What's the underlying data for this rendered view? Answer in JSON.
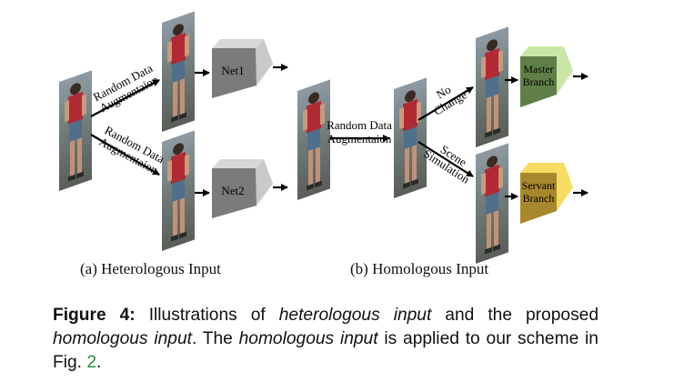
{
  "left": {
    "arrow_top": [
      "Random Data",
      "Augmentaion"
    ],
    "arrow_bottom": [
      "Random Data",
      "Augmentaion"
    ],
    "net1": "Net1",
    "net2": "Net2",
    "net_color": "#7b7b7b",
    "caption": "(a)  Heterologous Input"
  },
  "right": {
    "arrow_main": [
      "Random Data",
      "Augmentaion"
    ],
    "arrow_top": [
      "No",
      "Change"
    ],
    "arrow_bottom": [
      "Scene",
      "Simulation"
    ],
    "master": [
      "Master",
      "Branch"
    ],
    "servant": [
      "Servant",
      "Branch"
    ],
    "master_color": "#5f7f47",
    "master_light": "#c9e6a6",
    "servant_color": "#a8882c",
    "servant_light": "#f6dc62",
    "caption": "(b)  Homologous Input"
  },
  "figure_caption": {
    "label": "Figure 4:",
    "t1": " Illustrations of ",
    "e1": "heterologous input",
    "t2": " and the proposed ",
    "e2": "homologous input",
    "t3": ". The ",
    "e3": "homologous input",
    "t4": " is applied to our scheme in Fig. ",
    "ref": "2",
    "t5": "."
  }
}
